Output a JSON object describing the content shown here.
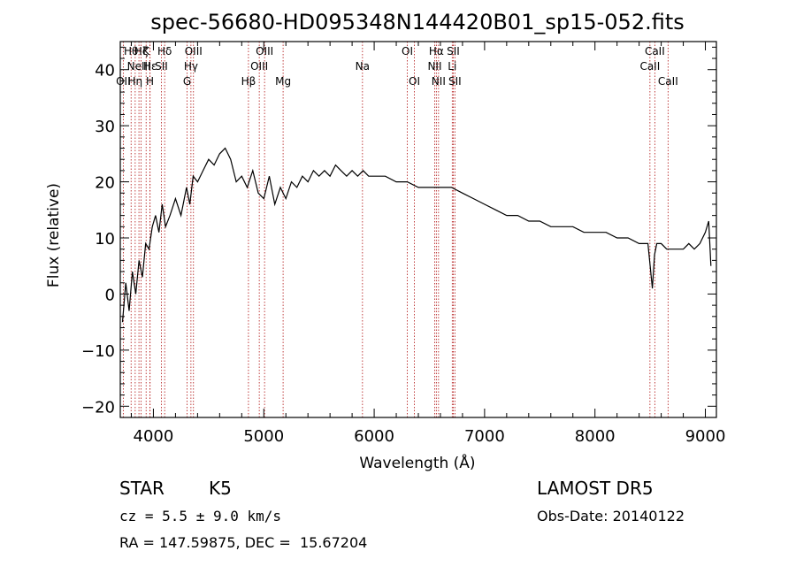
{
  "chart_data": {
    "type": "line",
    "title": "spec-56680-HD095348N144420B01_sp15-052.fits",
    "xlabel": "Wavelength (Å)",
    "ylabel": "Flux (relative)",
    "xlim": [
      3700,
      9100
    ],
    "ylim": [
      -22,
      45
    ],
    "xticks": [
      4000,
      5000,
      6000,
      7000,
      8000,
      9000
    ],
    "yticks": [
      -20,
      -10,
      0,
      10,
      20,
      30,
      40
    ],
    "grid": false,
    "line_color": "#000000",
    "marker_color": "#b01010",
    "series": [
      {
        "x": [
          3720,
          3750,
          3780,
          3810,
          3840,
          3870,
          3900,
          3930,
          3960,
          3990,
          4020,
          4050,
          4080,
          4110,
          4150,
          4200,
          4250,
          4300,
          4330,
          4360,
          4400,
          4450,
          4500,
          4550,
          4600,
          4650,
          4700,
          4750,
          4800,
          4850,
          4900,
          4950,
          5000,
          5050,
          5100,
          5150,
          5200,
          5250,
          5300,
          5350,
          5400,
          5450,
          5500,
          5550,
          5600,
          5650,
          5700,
          5750,
          5800,
          5850,
          5900,
          5950,
          6000,
          6100,
          6200,
          6300,
          6400,
          6500,
          6600,
          6700,
          6800,
          6900,
          7000,
          7100,
          7200,
          7300,
          7400,
          7500,
          7600,
          7700,
          7800,
          7900,
          8000,
          8100,
          8200,
          8300,
          8400,
          8480,
          8500,
          8520,
          8540,
          8560,
          8600,
          8650,
          8700,
          8750,
          8800,
          8850,
          8900,
          8950,
          9000,
          9030,
          9050
        ],
        "y": [
          -5,
          2,
          -3,
          4,
          0,
          6,
          3,
          9,
          8,
          12,
          14,
          11,
          16,
          12,
          14,
          17,
          14,
          19,
          16,
          21,
          20,
          22,
          24,
          23,
          25,
          26,
          24,
          20,
          21,
          19,
          22,
          18,
          17,
          21,
          16,
          19,
          17,
          20,
          19,
          21,
          20,
          22,
          21,
          22,
          21,
          23,
          22,
          21,
          22,
          21,
          22,
          21,
          21,
          21,
          20,
          20,
          19,
          19,
          19,
          19,
          18,
          17,
          16,
          15,
          14,
          14,
          13,
          13,
          12,
          12,
          12,
          11,
          11,
          11,
          10,
          10,
          9,
          9,
          5,
          1,
          7,
          9,
          9,
          8,
          8,
          8,
          8,
          9,
          8,
          9,
          11,
          13,
          5
        ]
      }
    ],
    "lines": [
      {
        "wave": 3727,
        "label": "OII",
        "row": 3
      },
      {
        "wave": 3798,
        "label": "Hθ",
        "row": 1
      },
      {
        "wave": 3835,
        "label": "Hη",
        "row": 3
      },
      {
        "wave": 3869,
        "label": "NeIII",
        "row": 2
      },
      {
        "wave": 3889,
        "label": "Hζ",
        "row": 1
      },
      {
        "wave": 3934,
        "label": "K",
        "row": 1
      },
      {
        "wave": 3969,
        "label": "H",
        "row": 3
      },
      {
        "wave": 3970,
        "label": "Hε",
        "row": 2
      },
      {
        "wave": 4072,
        "label": "SII",
        "row": 2
      },
      {
        "wave": 4102,
        "label": "Hδ",
        "row": 1
      },
      {
        "wave": 4305,
        "label": "G",
        "row": 3
      },
      {
        "wave": 4340,
        "label": "Hγ",
        "row": 2
      },
      {
        "wave": 4363,
        "label": "OIII",
        "row": 1
      },
      {
        "wave": 4861,
        "label": "Hβ",
        "row": 3
      },
      {
        "wave": 4959,
        "label": "OIII",
        "row": 2
      },
      {
        "wave": 5007,
        "label": "OIII",
        "row": 1
      },
      {
        "wave": 5175,
        "label": "Mg",
        "row": 3
      },
      {
        "wave": 5894,
        "label": "Na",
        "row": 2
      },
      {
        "wave": 6300,
        "label": "OI",
        "row": 1
      },
      {
        "wave": 6364,
        "label": "OI",
        "row": 3
      },
      {
        "wave": 6548,
        "label": "NII",
        "row": 2
      },
      {
        "wave": 6563,
        "label": "Hα",
        "row": 1
      },
      {
        "wave": 6583,
        "label": "NII",
        "row": 3
      },
      {
        "wave": 6707,
        "label": "Li",
        "row": 2
      },
      {
        "wave": 6716,
        "label": "SII",
        "row": 1
      },
      {
        "wave": 6731,
        "label": "SII",
        "row": 3
      },
      {
        "wave": 8498,
        "label": "CaII",
        "row": 2
      },
      {
        "wave": 8542,
        "label": "CaII",
        "row": 1
      },
      {
        "wave": 8662,
        "label": "CaII",
        "row": 3
      }
    ]
  },
  "info": {
    "class_label": "STAR",
    "subclass": "K5",
    "cz_text": "cz = 5.5 ± 9.0 km/s",
    "radec_text": "RA = 147.59875, DEC =  15.67204",
    "survey": "LAMOST DR5",
    "obs_date": "Obs-Date: 20140122"
  }
}
